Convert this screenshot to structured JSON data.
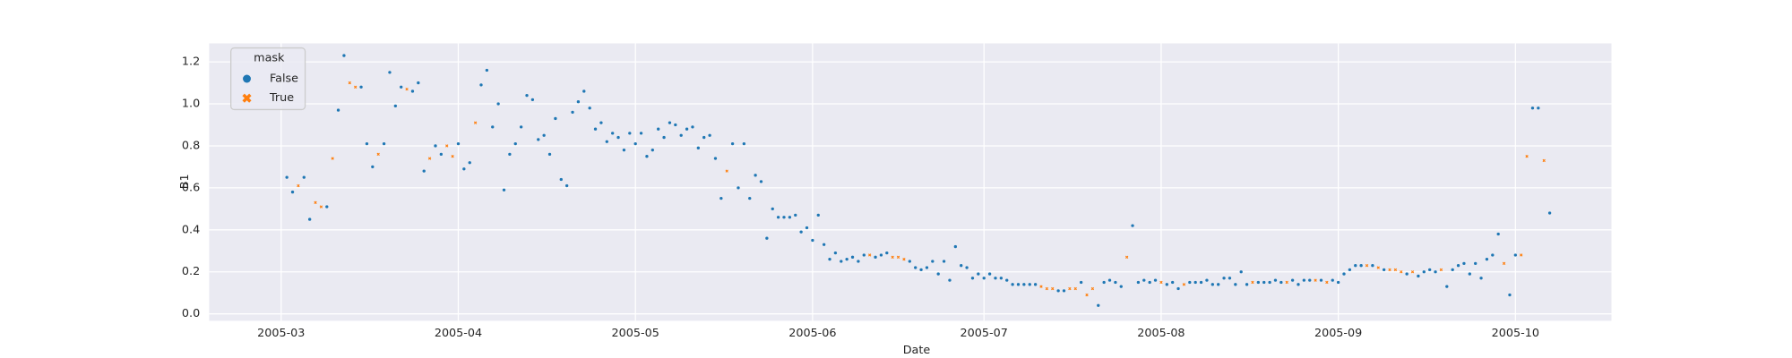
{
  "chart_data": {
    "type": "scatter",
    "x_label": "Date",
    "y_label": "B1",
    "legend_title": "mask",
    "grid": true,
    "legend_position": "upper left",
    "xlim": [
      -12.6,
      232.8
    ],
    "ylim": [
      -0.033,
      1.288
    ],
    "xticks": [
      {
        "value": 0,
        "label": "2005-03"
      },
      {
        "value": 31,
        "label": "2005-04"
      },
      {
        "value": 62,
        "label": "2005-05"
      },
      {
        "value": 93,
        "label": "2005-06"
      },
      {
        "value": 123,
        "label": "2005-07"
      },
      {
        "value": 154,
        "label": "2005-08"
      },
      {
        "value": 185,
        "label": "2005-09"
      },
      {
        "value": 216,
        "label": "2005-10"
      }
    ],
    "yticks": [
      {
        "value": 0,
        "label": "0.0"
      },
      {
        "value": 0.2,
        "label": "0.2"
      },
      {
        "value": 0.4,
        "label": "0.4"
      },
      {
        "value": 0.6,
        "label": "0.6"
      },
      {
        "value": 0.8,
        "label": "0.8"
      },
      {
        "value": 1.0,
        "label": "1.0"
      },
      {
        "value": 1.2,
        "label": "1.2"
      }
    ],
    "series": [
      {
        "name": "False",
        "color": "#1f77b4",
        "marker": "circle",
        "x": [
          1,
          2,
          4,
          5,
          8,
          10,
          11,
          14,
          15,
          16,
          18,
          19,
          20,
          21,
          23,
          24,
          25,
          27,
          28,
          31,
          32,
          33,
          35,
          36,
          37,
          38,
          39,
          40,
          41,
          42,
          43,
          44,
          45,
          46,
          47,
          48,
          49,
          50,
          51,
          52,
          53,
          54,
          55,
          56,
          57,
          58,
          59,
          60,
          61,
          62,
          63,
          64,
          65,
          66,
          67,
          68,
          69,
          70,
          71,
          72,
          73,
          74,
          75,
          76,
          77,
          79,
          80,
          81,
          82,
          83,
          84,
          85,
          86,
          87,
          88,
          89,
          90,
          91,
          92,
          93,
          94,
          95,
          96,
          97,
          98,
          99,
          100,
          101,
          102,
          104,
          105,
          106,
          110,
          111,
          112,
          113,
          114,
          115,
          116,
          117,
          118,
          119,
          120,
          121,
          122,
          123,
          124,
          125,
          126,
          127,
          128,
          129,
          130,
          131,
          132,
          136,
          137,
          140,
          143,
          144,
          145,
          146,
          147,
          149,
          150,
          151,
          152,
          153,
          155,
          156,
          157,
          159,
          160,
          161,
          162,
          163,
          164,
          165,
          166,
          167,
          168,
          169,
          171,
          172,
          173,
          174,
          175,
          177,
          178,
          179,
          180,
          182,
          184,
          185,
          186,
          187,
          188,
          189,
          191,
          193,
          197,
          199,
          200,
          201,
          202,
          204,
          205,
          206,
          207,
          208,
          209,
          210,
          211,
          212,
          213,
          215,
          216,
          219,
          220,
          222
        ],
        "values": [
          0.65,
          0.58,
          0.65,
          0.45,
          0.51,
          0.97,
          1.23,
          1.08,
          0.81,
          0.7,
          0.81,
          1.15,
          0.99,
          1.08,
          1.06,
          1.1,
          0.68,
          0.8,
          0.76,
          0.81,
          0.69,
          0.72,
          1.09,
          1.16,
          0.89,
          1.0,
          0.59,
          0.76,
          0.81,
          0.89,
          1.04,
          1.02,
          0.83,
          0.85,
          0.76,
          0.93,
          0.64,
          0.61,
          0.96,
          1.01,
          1.06,
          0.98,
          0.88,
          0.91,
          0.82,
          0.86,
          0.84,
          0.78,
          0.86,
          0.81,
          0.86,
          0.75,
          0.78,
          0.88,
          0.84,
          0.91,
          0.9,
          0.85,
          0.88,
          0.89,
          0.79,
          0.84,
          0.85,
          0.74,
          0.55,
          0.81,
          0.6,
          0.81,
          0.55,
          0.66,
          0.63,
          0.36,
          0.5,
          0.46,
          0.46,
          0.46,
          0.47,
          0.39,
          0.41,
          0.35,
          0.47,
          0.33,
          0.26,
          0.29,
          0.25,
          0.26,
          0.27,
          0.25,
          0.28,
          0.27,
          0.28,
          0.29,
          0.25,
          0.22,
          0.21,
          0.22,
          0.25,
          0.19,
          0.25,
          0.16,
          0.32,
          0.23,
          0.22,
          0.17,
          0.19,
          0.17,
          0.19,
          0.17,
          0.17,
          0.16,
          0.14,
          0.14,
          0.14,
          0.14,
          0.14,
          0.11,
          0.11,
          0.15,
          0.04,
          0.15,
          0.16,
          0.15,
          0.13,
          0.42,
          0.15,
          0.16,
          0.15,
          0.16,
          0.14,
          0.15,
          0.12,
          0.15,
          0.15,
          0.15,
          0.16,
          0.14,
          0.14,
          0.17,
          0.17,
          0.14,
          0.2,
          0.14,
          0.15,
          0.15,
          0.15,
          0.16,
          0.15,
          0.16,
          0.14,
          0.16,
          0.16,
          0.16,
          0.16,
          0.15,
          0.19,
          0.21,
          0.23,
          0.23,
          0.23,
          0.21,
          0.19,
          0.18,
          0.2,
          0.21,
          0.2,
          0.13,
          0.21,
          0.23,
          0.24,
          0.19,
          0.24,
          0.17,
          0.26,
          0.28,
          0.38,
          0.09,
          0.28,
          0.98,
          0.98,
          0.48
        ]
      },
      {
        "name": "True",
        "color": "#ff7f0e",
        "marker": "x",
        "x": [
          3,
          6,
          7,
          9,
          12,
          13,
          17,
          22,
          26,
          29,
          30,
          34,
          78,
          103,
          107,
          108,
          109,
          133,
          134,
          135,
          138,
          139,
          141,
          142,
          148,
          154,
          158,
          170,
          176,
          181,
          183,
          190,
          192,
          194,
          195,
          196,
          198,
          203,
          214,
          217,
          218,
          221
        ],
        "values": [
          0.61,
          0.53,
          0.51,
          0.74,
          1.1,
          1.08,
          0.76,
          1.07,
          0.74,
          0.8,
          0.75,
          0.91,
          0.68,
          0.28,
          0.27,
          0.27,
          0.26,
          0.13,
          0.12,
          0.12,
          0.12,
          0.12,
          0.09,
          0.12,
          0.27,
          0.15,
          0.14,
          0.15,
          0.15,
          0.16,
          0.15,
          0.23,
          0.22,
          0.21,
          0.21,
          0.2,
          0.2,
          0.21,
          0.24,
          0.28,
          0.75,
          0.73
        ]
      }
    ]
  }
}
